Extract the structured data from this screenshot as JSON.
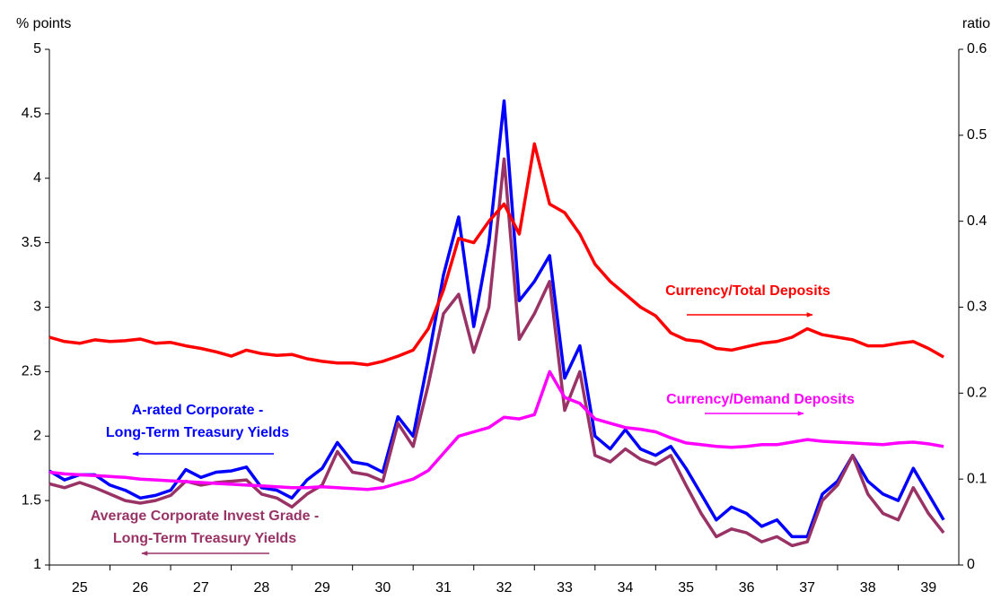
{
  "chart_data": {
    "type": "line",
    "ylabel": "% points",
    "y2label": "ratio",
    "xlim": [
      25,
      40
    ],
    "xticks": [
      {
        "value": 25.5,
        "label": "25"
      },
      {
        "value": 26.5,
        "label": "26"
      },
      {
        "value": 27.5,
        "label": "27"
      },
      {
        "value": 28.5,
        "label": "28"
      },
      {
        "value": 29.5,
        "label": "29"
      },
      {
        "value": 30.5,
        "label": "30"
      },
      {
        "value": 31.5,
        "label": "31"
      },
      {
        "value": 32.5,
        "label": "32"
      },
      {
        "value": 33.5,
        "label": "33"
      },
      {
        "value": 34.5,
        "label": "34"
      },
      {
        "value": 35.5,
        "label": "35"
      },
      {
        "value": 36.5,
        "label": "36"
      },
      {
        "value": 37.5,
        "label": "37"
      },
      {
        "value": 38.5,
        "label": "38"
      },
      {
        "value": 39.5,
        "label": "39"
      }
    ],
    "ylim": [
      1,
      5
    ],
    "yticks": [
      1,
      1.5,
      2,
      2.5,
      3,
      3.5,
      4,
      4.5,
      5
    ],
    "y2lim": [
      0,
      0.6
    ],
    "y2ticks": [
      0,
      0.1,
      0.2,
      0.3,
      0.4,
      0.5,
      0.6
    ],
    "x": [
      25,
      25.25,
      25.5,
      25.75,
      26,
      26.25,
      26.5,
      26.75,
      27,
      27.25,
      27.5,
      27.75,
      28,
      28.25,
      28.5,
      28.75,
      29,
      29.25,
      29.5,
      29.75,
      30,
      30.25,
      30.5,
      30.75,
      31,
      31.25,
      31.5,
      31.75,
      32,
      32.25,
      32.5,
      32.75,
      33,
      33.25,
      33.5,
      33.75,
      34,
      34.25,
      34.5,
      34.75,
      35,
      35.25,
      35.5,
      35.75,
      36,
      36.25,
      36.5,
      36.75,
      37,
      37.25,
      37.5,
      37.75,
      38,
      38.25,
      38.5,
      38.75,
      39,
      39.25,
      39.5,
      39.75
    ],
    "series": [
      {
        "name": "A-rated Corporate - Long-Term Treasury Yields",
        "color": "#0000ff",
        "axis": "y",
        "values": [
          1.73,
          1.66,
          1.7,
          1.7,
          1.62,
          1.58,
          1.52,
          1.54,
          1.58,
          1.74,
          1.68,
          1.72,
          1.73,
          1.76,
          1.6,
          1.58,
          1.52,
          1.66,
          1.75,
          1.95,
          1.8,
          1.78,
          1.72,
          2.15,
          2.0,
          2.6,
          3.25,
          3.7,
          2.85,
          3.5,
          4.6,
          3.05,
          3.2,
          3.4,
          2.45,
          2.7,
          2.0,
          1.9,
          2.05,
          1.9,
          1.85,
          1.92,
          1.75,
          1.55,
          1.35,
          1.45,
          1.4,
          1.3,
          1.35,
          1.22,
          1.22,
          1.55,
          1.65,
          1.85,
          1.65,
          1.55,
          1.5,
          1.75,
          1.55,
          1.35
        ]
      },
      {
        "name": "Average Corporate Invest Grade - Long-Term Treasury Yields",
        "color": "#993366",
        "axis": "y",
        "values": [
          1.63,
          1.6,
          1.64,
          1.6,
          1.55,
          1.5,
          1.48,
          1.5,
          1.54,
          1.65,
          1.62,
          1.64,
          1.65,
          1.66,
          1.55,
          1.52,
          1.45,
          1.55,
          1.62,
          1.88,
          1.72,
          1.7,
          1.65,
          2.1,
          1.92,
          2.4,
          2.95,
          3.1,
          2.65,
          3.0,
          4.15,
          2.75,
          2.95,
          3.2,
          2.2,
          2.5,
          1.85,
          1.8,
          1.9,
          1.82,
          1.78,
          1.85,
          1.62,
          1.4,
          1.22,
          1.28,
          1.25,
          1.18,
          1.22,
          1.15,
          1.18,
          1.5,
          1.62,
          1.85,
          1.55,
          1.4,
          1.35,
          1.6,
          1.4,
          1.25
        ]
      },
      {
        "name": "Currency/Total Deposits",
        "color": "#ff0000",
        "axis": "y2",
        "values": [
          0.265,
          0.26,
          0.258,
          0.262,
          0.26,
          0.261,
          0.263,
          0.258,
          0.259,
          0.255,
          0.252,
          0.248,
          0.243,
          0.25,
          0.246,
          0.244,
          0.245,
          0.24,
          0.237,
          0.235,
          0.235,
          0.233,
          0.237,
          0.243,
          0.25,
          0.275,
          0.32,
          0.38,
          0.375,
          0.4,
          0.42,
          0.385,
          0.49,
          0.42,
          0.41,
          0.385,
          0.35,
          0.33,
          0.315,
          0.3,
          0.29,
          0.27,
          0.262,
          0.26,
          0.252,
          0.25,
          0.254,
          0.258,
          0.26,
          0.265,
          0.275,
          0.268,
          0.265,
          0.262,
          0.255,
          0.255,
          0.258,
          0.26,
          0.252,
          0.242
        ]
      },
      {
        "name": "Currency/Demand Deposits",
        "color": "#ff00ff",
        "axis": "y2",
        "values": [
          0.108,
          0.106,
          0.105,
          0.104,
          0.103,
          0.102,
          0.1,
          0.099,
          0.098,
          0.097,
          0.096,
          0.095,
          0.094,
          0.093,
          0.092,
          0.091,
          0.09,
          0.09,
          0.091,
          0.09,
          0.089,
          0.088,
          0.09,
          0.095,
          0.1,
          0.11,
          0.13,
          0.15,
          0.155,
          0.16,
          0.172,
          0.17,
          0.175,
          0.225,
          0.195,
          0.188,
          0.17,
          0.165,
          0.16,
          0.158,
          0.155,
          0.148,
          0.142,
          0.14,
          0.138,
          0.137,
          0.138,
          0.14,
          0.14,
          0.143,
          0.146,
          0.144,
          0.143,
          0.142,
          0.141,
          0.14,
          0.142,
          0.143,
          0.141,
          0.138
        ]
      }
    ],
    "annotations": [
      {
        "lines": [
          "Currency/Total Deposits"
        ],
        "color": "#ff0000"
      },
      {
        "lines": [
          "Currency/Demand Deposits"
        ],
        "color": "#ff00ff"
      },
      {
        "lines": [
          "A-rated Corporate -",
          "Long-Term Treasury Yields"
        ],
        "color": "#0000ff"
      },
      {
        "lines": [
          "Average Corporate Invest Grade -",
          "Long-Term Treasury Yields"
        ],
        "color": "#993366"
      }
    ]
  }
}
